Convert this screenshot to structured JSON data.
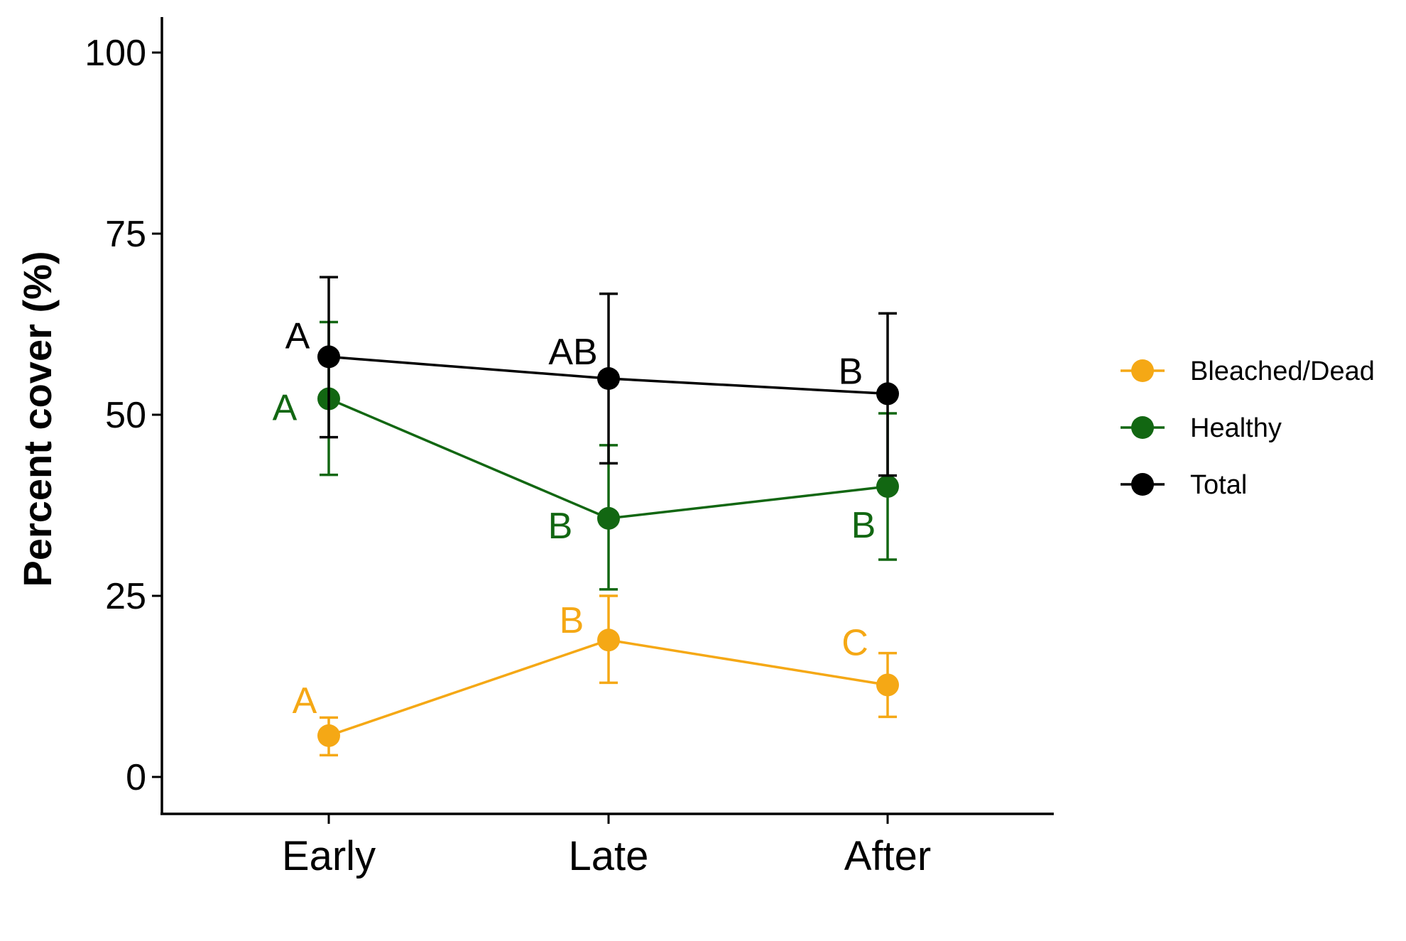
{
  "chart_data": {
    "type": "line",
    "title": "",
    "xlabel": "",
    "ylabel": "Percent cover (%)",
    "categories": [
      "Early",
      "Late",
      "After"
    ],
    "ylim": [
      -5,
      105
    ],
    "yticks": [
      0,
      25,
      50,
      75,
      100
    ],
    "grid": false,
    "legend_position": "right",
    "series": [
      {
        "name": "Bleached/Dead",
        "color": "#F5A815",
        "values": [
          5.7,
          18.9,
          12.7
        ],
        "error_low": [
          3.0,
          13.0,
          8.3
        ],
        "error_high": [
          8.2,
          25.0,
          17.1
        ],
        "letters": [
          "A",
          "B",
          "C"
        ]
      },
      {
        "name": "Healthy",
        "color": "#126712",
        "values": [
          52.2,
          35.7,
          40.1
        ],
        "error_low": [
          41.7,
          25.9,
          30.0
        ],
        "error_high": [
          62.8,
          45.8,
          50.2
        ],
        "letters": [
          "A",
          "B",
          "B"
        ]
      },
      {
        "name": "Total",
        "color": "#000000",
        "values": [
          58.0,
          55.0,
          52.9
        ],
        "error_low": [
          46.9,
          43.3,
          41.6
        ],
        "error_high": [
          69.0,
          66.7,
          64.0
        ],
        "letters": [
          "A",
          "AB",
          "B"
        ]
      }
    ]
  }
}
